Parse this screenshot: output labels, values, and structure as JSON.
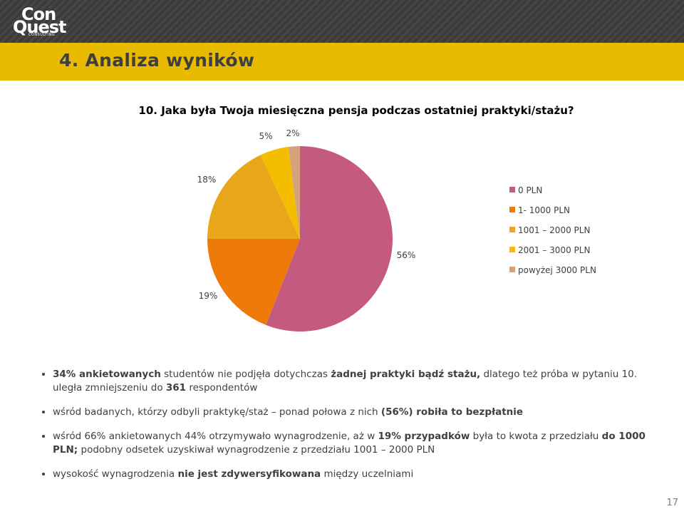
{
  "header": {
    "logo_line1": "Con",
    "logo_line2": "Quest",
    "logo_tagline": "CONSULTING",
    "title": "4. Analiza wyników"
  },
  "question": "10. Jaka była Twoja miesięczna pensja podczas ostatniej praktyki/stażu?",
  "chart_data": {
    "type": "pie",
    "title": "10. Jaka była Twoja miesięczna pensja podczas ostatniej praktyki/stażu?",
    "categories": [
      "0 PLN",
      "1- 1000 PLN",
      "1001 – 2000 PLN",
      "2001 – 3000 PLN",
      "powyżej 3000 PLN"
    ],
    "values": [
      56,
      19,
      18,
      5,
      2
    ],
    "labels": [
      "56%",
      "19%",
      "18%",
      "5%",
      "2%"
    ],
    "colors": [
      "#c55a80",
      "#ee7a0a",
      "#e7a719",
      "#f5bd00",
      "#d5a27e"
    ],
    "legend_position": "right",
    "start_angle": "12 o'clock, clockwise"
  },
  "bullets": [
    [
      {
        "t": "34% ankietowanych",
        "b": true
      },
      {
        "t": " studentów nie podjęła dotychczas ",
        "b": false
      },
      {
        "t": "żadnej praktyki bądź stażu,",
        "b": true
      },
      {
        "t": " dlatego też próba w pytaniu 10. uległa zmniejszeniu do ",
        "b": false
      },
      {
        "t": "361",
        "b": true
      },
      {
        "t": " respondentów",
        "b": false
      }
    ],
    [
      {
        "t": "wśród badanych, którzy odbyli praktykę/staż – ponad połowa z nich ",
        "b": false
      },
      {
        "t": "(56%) robiła to bezpłatnie",
        "b": true
      }
    ],
    [
      {
        "t": "wśród 66% ankietowanych 44% otrzymywało wynagrodzenie, aż w ",
        "b": false
      },
      {
        "t": "19% przypadków",
        "b": true
      },
      {
        "t": " była to kwota z przedziału ",
        "b": false
      },
      {
        "t": "do 1000 PLN;",
        "b": true
      },
      {
        "t": " podobny odsetek uzyskiwał wynagrodzenie z przedziału 1001 – 2000 PLN",
        "b": false
      }
    ],
    [
      {
        "t": "wysokość wynagrodzenia ",
        "b": false
      },
      {
        "t": "nie jest zdywersyfikowana",
        "b": true
      },
      {
        "t": " między uczelniami",
        "b": false
      }
    ]
  ],
  "page_number": "17"
}
